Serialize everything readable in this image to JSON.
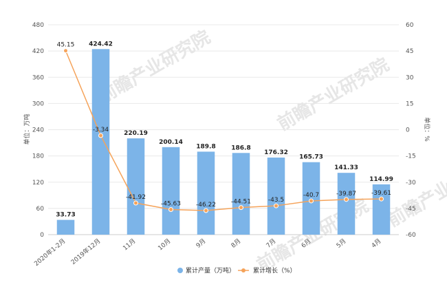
{
  "chart_data": {
    "type": "bar+line",
    "categories": [
      "2020年1-2月",
      "2019年12月",
      "11月",
      "10月",
      "9月",
      "8月",
      "7月",
      "6月",
      "5月",
      "4月"
    ],
    "series": [
      {
        "name": "累计产量（万吨）",
        "type": "bar",
        "axis": "left",
        "values": [
          33.73,
          424.42,
          220.19,
          200.14,
          189.8,
          186.8,
          176.32,
          165.73,
          141.33,
          114.99
        ],
        "labels": [
          "33.73",
          "424.42",
          "220.19",
          "200.14",
          "189.8",
          "186.8",
          "176.32",
          "165.73",
          "141.33",
          "114.99"
        ],
        "color": "#7cb4e8"
      },
      {
        "name": "累计增长（%）",
        "type": "line",
        "axis": "right",
        "values": [
          45.15,
          -3.34,
          -41.92,
          -45.63,
          -46.22,
          -44.51,
          -43.5,
          -40.7,
          -39.87,
          -39.61
        ],
        "labels": [
          "45.15",
          "-3.34",
          "-41.92",
          "-45.63",
          "-46.22",
          "-44.51",
          "-43.5",
          "-40.7",
          "-39.87",
          "-39.61"
        ],
        "color": "#f5a35a"
      }
    ],
    "ylabel_left": "单位：万吨",
    "ylabel_right": "单位：%",
    "ylim_left": [
      0,
      480
    ],
    "yticks_left": [
      "0",
      "60",
      "120",
      "180",
      "240",
      "300",
      "360",
      "420",
      "480"
    ],
    "ylim_right": [
      -60,
      60
    ],
    "yticks_right": [
      "-60",
      "-45",
      "-30",
      "-15",
      "0",
      "15",
      "30",
      "45",
      "60"
    ],
    "grid": true,
    "legend_position": "bottom-center",
    "watermark": "前瞻产业研究院"
  }
}
